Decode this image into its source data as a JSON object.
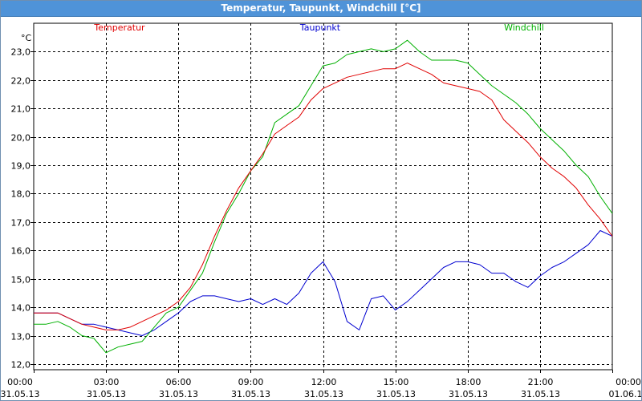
{
  "window": {
    "title": "Temperatur, Taupunkt, Windchill [°C]"
  },
  "chart_data": {
    "type": "line",
    "title": "Temperatur, Taupunkt, Windchill [°C]",
    "y_unit_label": "°C",
    "ylim": [
      11.8,
      24.0
    ],
    "xlim": [
      0,
      24
    ],
    "grid": true,
    "legend_placement": "top",
    "y_ticks": [
      "12,0",
      "13,0",
      "14,0",
      "15,0",
      "16,0",
      "17,0",
      "18,0",
      "19,0",
      "20,0",
      "21,0",
      "22,0",
      "23,0"
    ],
    "y_tick_values": [
      12,
      13,
      14,
      15,
      16,
      17,
      18,
      19,
      20,
      21,
      22,
      23
    ],
    "x_ticks": [
      {
        "h": 0,
        "time": "00:00",
        "date": "31.05.13"
      },
      {
        "h": 3,
        "time": "03:00",
        "date": "31.05.13"
      },
      {
        "h": 6,
        "time": "06:00",
        "date": "31.05.13"
      },
      {
        "h": 9,
        "time": "09:00",
        "date": "31.05.13"
      },
      {
        "h": 12,
        "time": "12:00",
        "date": "31.05.13"
      },
      {
        "h": 15,
        "time": "15:00",
        "date": "31.05.13"
      },
      {
        "h": 18,
        "time": "18:00",
        "date": "31.05.13"
      },
      {
        "h": 21,
        "time": "21:00",
        "date": "31.05.13"
      },
      {
        "h": 24,
        "time": "00:00",
        "date": "01.06.13"
      }
    ],
    "series": [
      {
        "name": "Temperatur",
        "color": "#e00000",
        "x": [
          0,
          0.5,
          1,
          1.5,
          2,
          2.5,
          3,
          3.5,
          4,
          4.5,
          5,
          5.5,
          6,
          6.5,
          7,
          7.5,
          8,
          8.5,
          9,
          9.5,
          10,
          10.5,
          11,
          11.5,
          12,
          12.5,
          13,
          13.5,
          14,
          14.5,
          15,
          15.5,
          16,
          16.5,
          17,
          17.5,
          18,
          18.5,
          19,
          19.5,
          20,
          20.5,
          21,
          21.5,
          22,
          22.5,
          23,
          23.5,
          24
        ],
        "values": [
          13.8,
          13.8,
          13.8,
          13.6,
          13.4,
          13.3,
          13.2,
          13.2,
          13.3,
          13.5,
          13.7,
          13.9,
          14.2,
          14.7,
          15.5,
          16.5,
          17.4,
          18.2,
          18.8,
          19.4,
          20.1,
          20.4,
          20.7,
          21.3,
          21.7,
          21.9,
          22.1,
          22.2,
          22.3,
          22.4,
          22.4,
          22.6,
          22.4,
          22.2,
          21.9,
          21.8,
          21.7,
          21.6,
          21.3,
          20.6,
          20.2,
          19.8,
          19.3,
          18.9,
          18.6,
          18.2,
          17.6,
          17.1,
          16.5
        ]
      },
      {
        "name": "Taupunkt",
        "color": "#0000d0",
        "x": [
          0,
          0.5,
          1,
          1.5,
          2,
          2.5,
          3,
          3.5,
          4,
          4.5,
          5,
          5.5,
          6,
          6.5,
          7,
          7.5,
          8,
          8.5,
          9,
          9.5,
          10,
          10.5,
          11,
          11.5,
          12,
          12.5,
          13,
          13.5,
          14,
          14.5,
          15,
          15.5,
          16,
          16.5,
          17,
          17.5,
          18,
          18.5,
          19,
          19.5,
          20,
          20.5,
          21,
          21.5,
          22,
          22.5,
          23,
          23.5,
          24
        ],
        "values": [
          13.8,
          13.8,
          13.8,
          13.6,
          13.4,
          13.4,
          13.3,
          13.2,
          13.1,
          13.0,
          13.2,
          13.5,
          13.8,
          14.2,
          14.4,
          14.4,
          14.3,
          14.2,
          14.3,
          14.1,
          14.3,
          14.1,
          14.5,
          15.2,
          15.6,
          14.9,
          13.5,
          13.2,
          14.3,
          14.4,
          13.9,
          14.2,
          14.6,
          15.0,
          15.4,
          15.6,
          15.6,
          15.5,
          15.2,
          15.2,
          14.9,
          14.7,
          15.1,
          15.4,
          15.6,
          15.9,
          16.2,
          16.7,
          16.5
        ]
      },
      {
        "name": "Windchill",
        "color": "#00b000",
        "x": [
          0,
          0.5,
          1,
          1.5,
          2,
          2.5,
          3,
          3.5,
          4,
          4.5,
          5,
          5.5,
          6,
          6.5,
          7,
          7.5,
          8,
          8.5,
          9,
          9.5,
          10,
          10.5,
          11,
          11.5,
          12,
          12.5,
          13,
          13.5,
          14,
          14.5,
          15,
          15.5,
          16,
          16.5,
          17,
          17.5,
          18,
          18.5,
          19,
          19.5,
          20,
          20.5,
          21,
          21.5,
          22,
          22.5,
          23,
          23.5,
          24
        ],
        "values": [
          13.4,
          13.4,
          13.5,
          13.3,
          13.0,
          12.9,
          12.4,
          12.6,
          12.7,
          12.8,
          13.3,
          13.8,
          14.0,
          14.6,
          15.2,
          16.3,
          17.3,
          18.0,
          18.8,
          19.3,
          20.5,
          20.8,
          21.1,
          21.8,
          22.5,
          22.6,
          22.9,
          23.0,
          23.1,
          23.0,
          23.1,
          23.4,
          23.0,
          22.7,
          22.7,
          22.7,
          22.6,
          22.2,
          21.8,
          21.5,
          21.2,
          20.8,
          20.3,
          19.9,
          19.5,
          19.0,
          18.6,
          17.9,
          17.3
        ]
      }
    ]
  }
}
